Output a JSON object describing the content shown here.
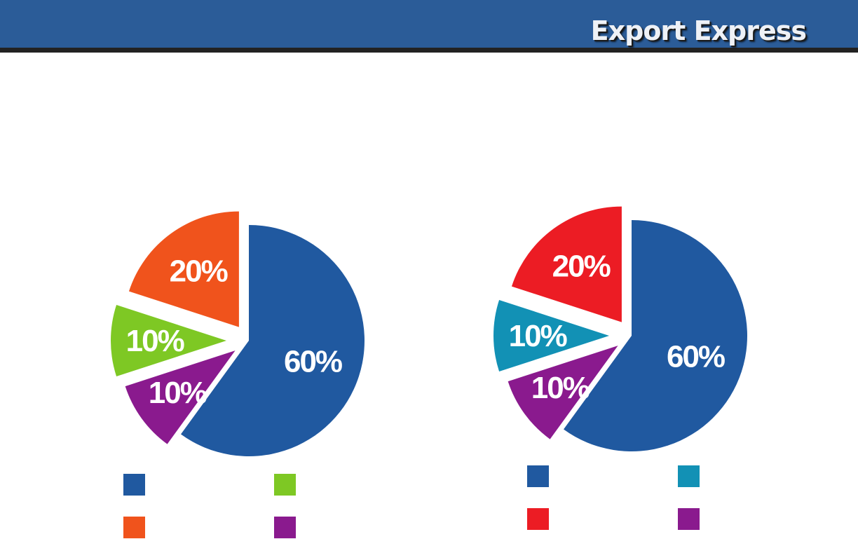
{
  "header": {
    "brand": "Export Express"
  },
  "colors": {
    "header_bg": "#2b5c98",
    "header_rule": "#222222"
  },
  "chart_data": [
    {
      "type": "pie",
      "slices": [
        {
          "value": 60,
          "label": "60%",
          "color": "#2059a0"
        },
        {
          "value": 10,
          "label": "10%",
          "color": "#8a1a8e"
        },
        {
          "value": 10,
          "label": "10%",
          "color": "#7ec824"
        },
        {
          "value": 20,
          "label": "20%",
          "color": "#f0531c"
        }
      ],
      "legend": [
        {
          "color": "#2059a0",
          "label": ""
        },
        {
          "color": "#7ec824",
          "label": ""
        },
        {
          "color": "#f0531c",
          "label": ""
        },
        {
          "color": "#8a1a8e",
          "label": ""
        }
      ]
    },
    {
      "type": "pie",
      "slices": [
        {
          "value": 60,
          "label": "60%",
          "color": "#2059a0"
        },
        {
          "value": 10,
          "label": "10%",
          "color": "#8a1a8e"
        },
        {
          "value": 10,
          "label": "10%",
          "color": "#1291b5"
        },
        {
          "value": 20,
          "label": "20%",
          "color": "#ec1c24"
        }
      ],
      "legend": [
        {
          "color": "#2059a0",
          "label": ""
        },
        {
          "color": "#1291b5",
          "label": ""
        },
        {
          "color": "#ec1c24",
          "label": ""
        },
        {
          "color": "#8a1a8e",
          "label": ""
        }
      ]
    }
  ]
}
